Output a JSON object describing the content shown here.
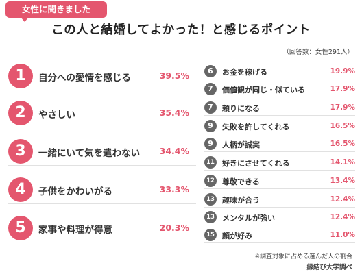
{
  "tag": "女性に聞きました",
  "title": "この人と結婚してよかった！と感じるポイント",
  "respondents": "（回答数：女性291人）",
  "left_items": [
    {
      "rank": "1",
      "label": "自分への愛情を感じる",
      "percent": "39.5%"
    },
    {
      "rank": "2",
      "label": "やさしい",
      "percent": "35.4%"
    },
    {
      "rank": "3",
      "label": "一緒にいて気を遣わない",
      "percent": "34.4%"
    },
    {
      "rank": "4",
      "label": "子供をかわいがる",
      "percent": "33.3%"
    },
    {
      "rank": "5",
      "label": "家事や料理が得意",
      "percent": "20.3%"
    }
  ],
  "right_items": [
    {
      "rank": "6",
      "label": "お金を稼げる",
      "percent": "19.9%"
    },
    {
      "rank": "7",
      "label": "価値観が同じ・似ている",
      "percent": "17.9%"
    },
    {
      "rank": "7",
      "label": "頼りになる",
      "percent": "17.9%"
    },
    {
      "rank": "9",
      "label": "失敗を許してくれる",
      "percent": "16.5%"
    },
    {
      "rank": "9",
      "label": "人柄が誠実",
      "percent": "16.5%"
    },
    {
      "rank": "11",
      "label": "好きにさせてくれる",
      "percent": "14.1%"
    },
    {
      "rank": "12",
      "label": "尊敬できる",
      "percent": "13.4%"
    },
    {
      "rank": "13",
      "label": "趣味が合う",
      "percent": "12.4%"
    },
    {
      "rank": "13",
      "label": "メンタルが強い",
      "percent": "12.4%"
    },
    {
      "rank": "15",
      "label": "顔が好み",
      "percent": "11.0%"
    }
  ],
  "note": "※調査対象に占める選んだ人の割合",
  "source": "縁結び大学調べ",
  "colors": {
    "accent": "#e4566e",
    "badge_gray": "#666666",
    "text": "#333333",
    "divider": "#e1e1e1"
  }
}
